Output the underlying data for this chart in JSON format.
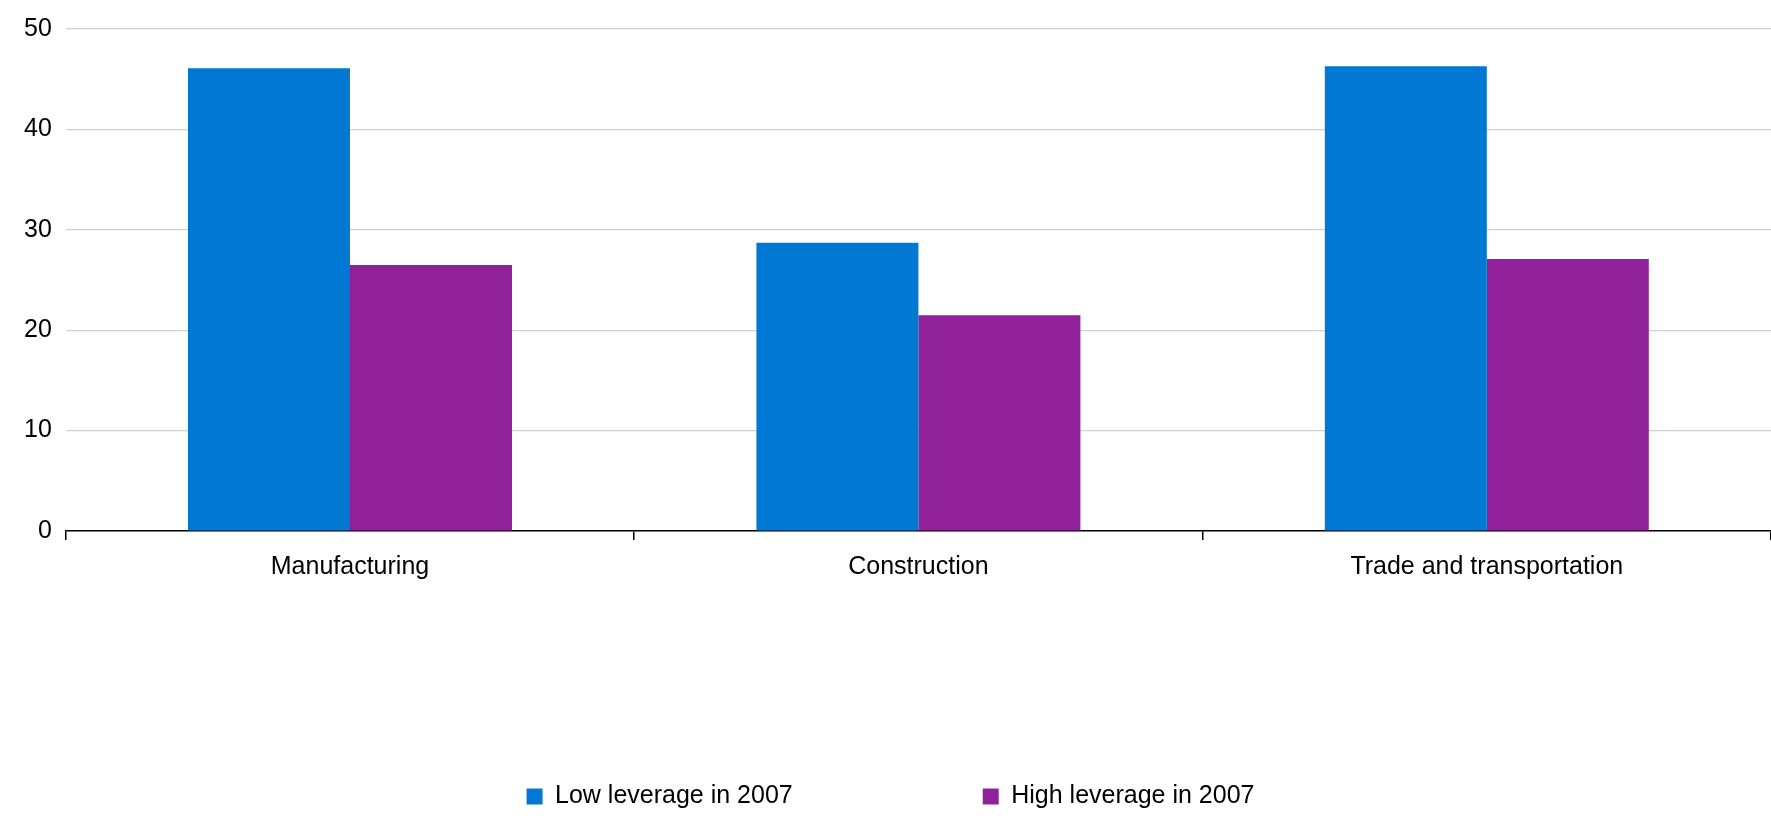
{
  "chart_data": {
    "type": "bar",
    "categories": [
      "Manufacturing",
      "Construction",
      "Trade and transportation"
    ],
    "series": [
      {
        "name": "Low leverage in 2007",
        "color": "#0078d4",
        "values": [
          46.1,
          28.7,
          46.3
        ]
      },
      {
        "name": "High leverage in 2007",
        "color": "#90219a",
        "values": [
          26.5,
          21.5,
          27.1
        ]
      }
    ],
    "ylim": [
      0,
      50
    ],
    "yticks": [
      0,
      10,
      20,
      30,
      40,
      50
    ],
    "grid": "y",
    "legend": "bottom"
  }
}
